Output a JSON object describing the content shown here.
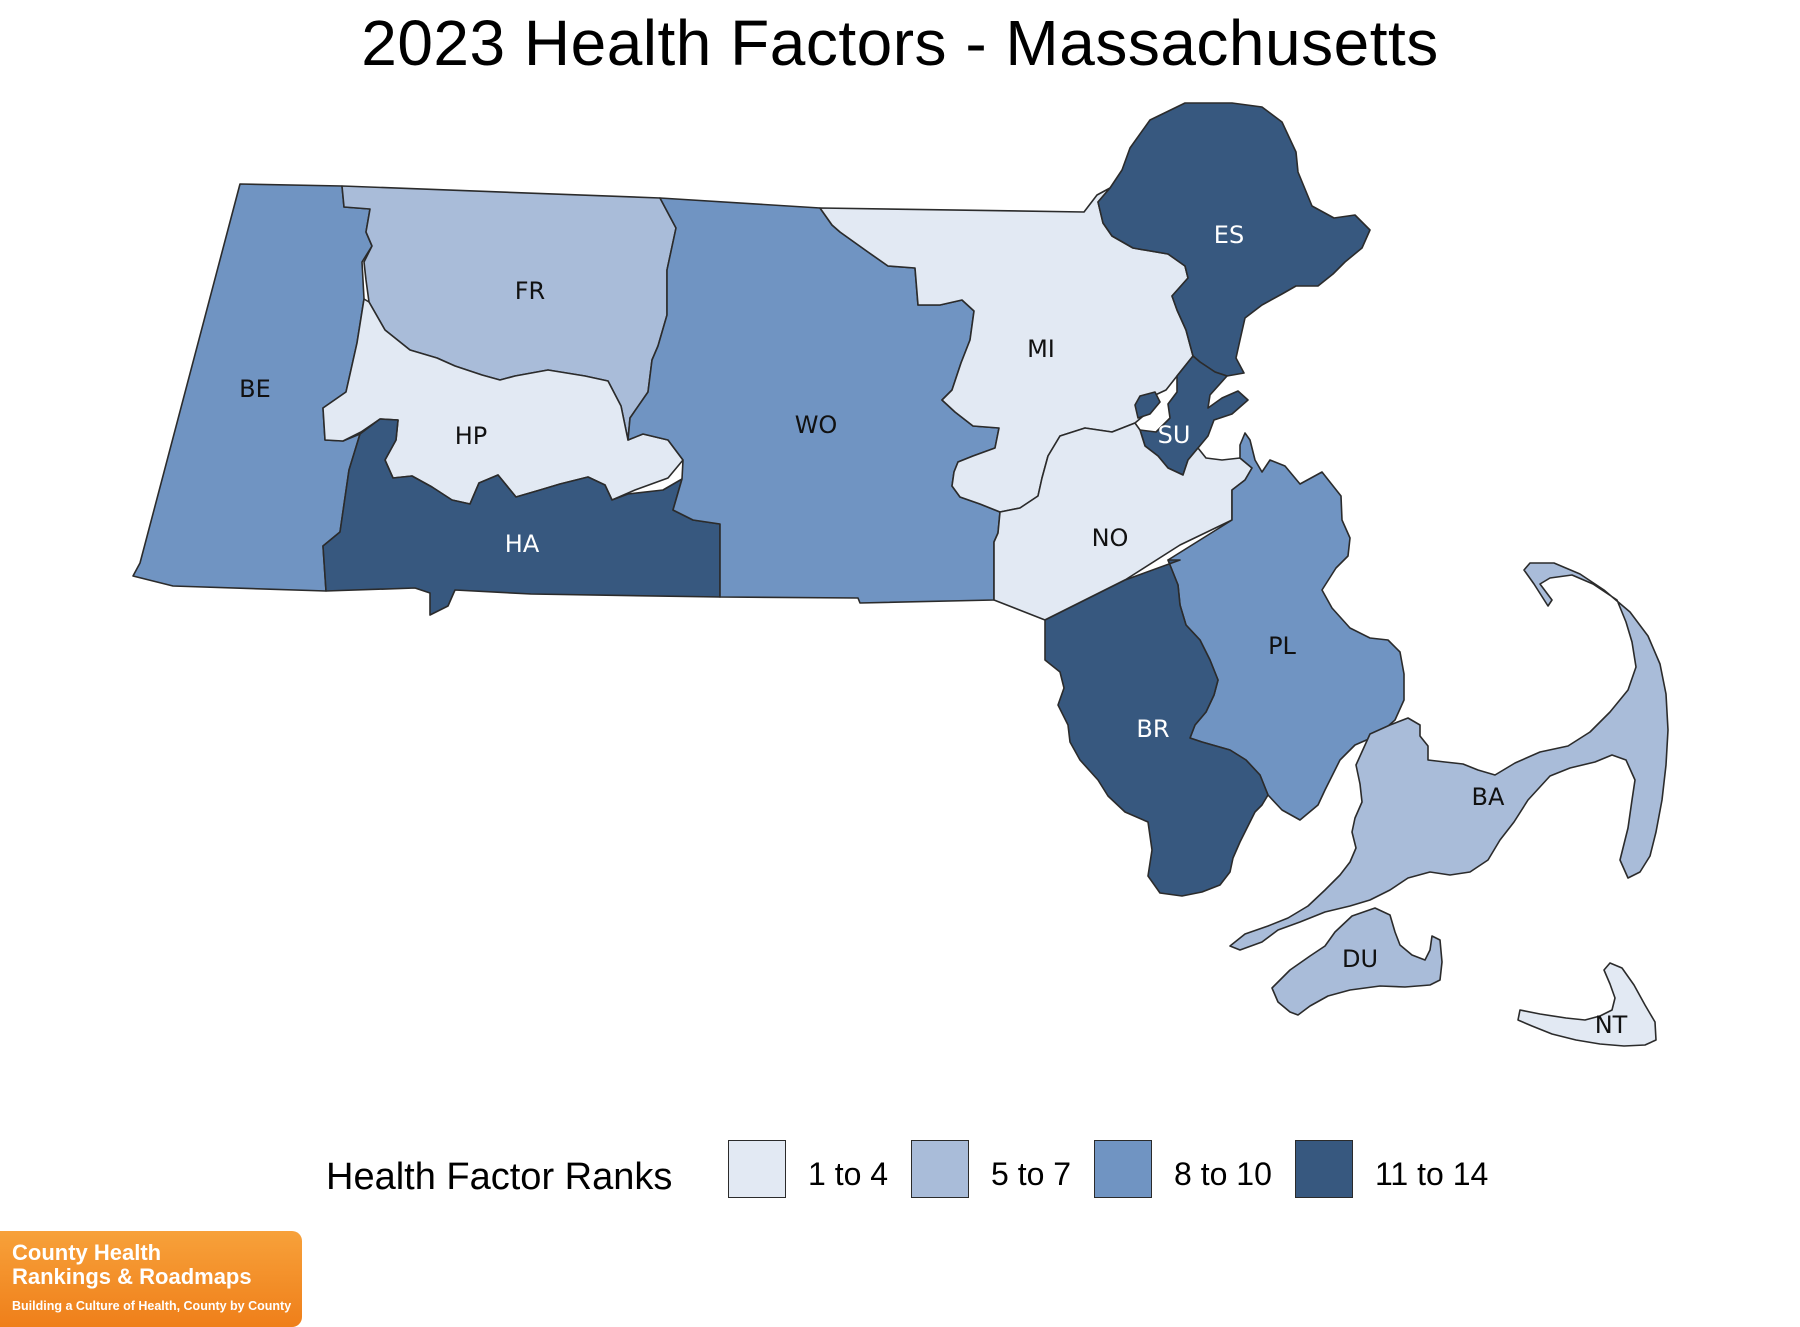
{
  "title": "2023 Health Factors - Massachusetts",
  "colors": {
    "bin1": "#e2e9f3",
    "bin2": "#a9bcd9",
    "bin3": "#7094c2",
    "bin4": "#37587f",
    "outline": "#2b2b2b"
  },
  "counties": [
    {
      "abbr": "BE",
      "bin": 3
    },
    {
      "abbr": "FR",
      "bin": 2
    },
    {
      "abbr": "HP",
      "bin": 1
    },
    {
      "abbr": "HA",
      "bin": 4
    },
    {
      "abbr": "WO",
      "bin": 3
    },
    {
      "abbr": "MI",
      "bin": 1
    },
    {
      "abbr": "ES",
      "bin": 4
    },
    {
      "abbr": "SU",
      "bin": 4
    },
    {
      "abbr": "NO",
      "bin": 1
    },
    {
      "abbr": "PL",
      "bin": 3
    },
    {
      "abbr": "BR",
      "bin": 4
    },
    {
      "abbr": "BA",
      "bin": 2
    },
    {
      "abbr": "DU",
      "bin": 2
    },
    {
      "abbr": "NT",
      "bin": 1
    }
  ],
  "legend": {
    "title": "Health Factor Ranks",
    "items": [
      {
        "label": "1 to 4",
        "bin": 1
      },
      {
        "label": "5 to 7",
        "bin": 2
      },
      {
        "label": "8 to 10",
        "bin": 3
      },
      {
        "label": "11 to 14",
        "bin": 4
      }
    ]
  },
  "logo": {
    "line1": "County Health",
    "line2": "Rankings & Roadmaps",
    "tagline": "Building a Culture of Health, County by County"
  }
}
